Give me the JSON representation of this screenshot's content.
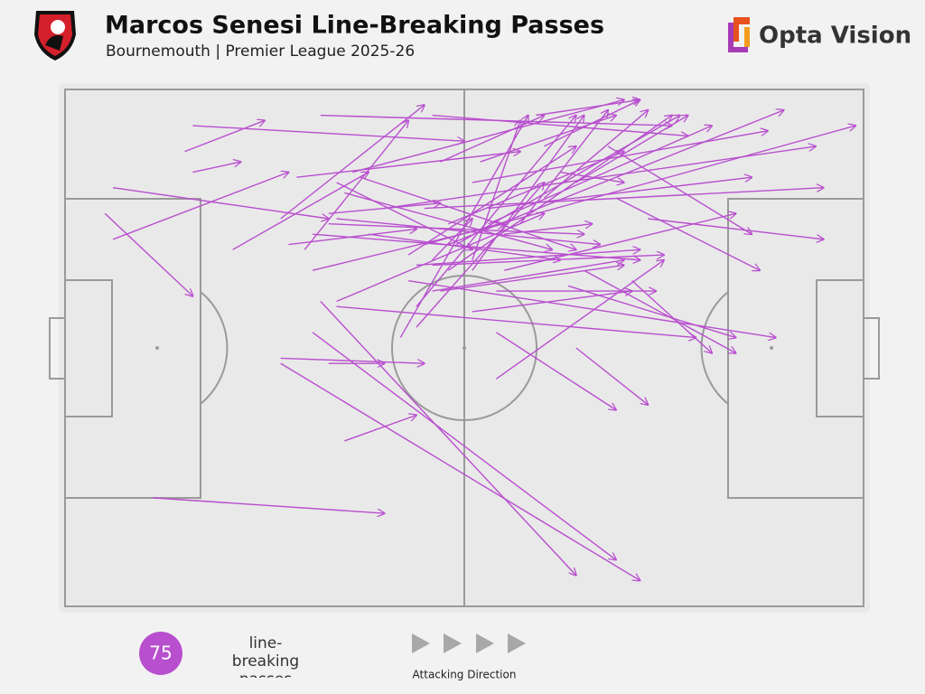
{
  "title": "Marcos Senesi Line-Breaking Passes",
  "subtitle": "Bournemouth | Premier League 2025-26",
  "brand": "Opta Vision",
  "pass_color": "#b84fce",
  "summary": {
    "count": 75,
    "label": "line-breaking passes"
  },
  "direction_label": "Attacking Direction",
  "passes": [
    [
      15,
      12,
      25,
      6
    ],
    [
      16,
      7,
      50,
      10
    ],
    [
      16,
      16,
      22,
      14
    ],
    [
      6,
      29,
      28,
      16
    ],
    [
      6,
      19,
      33,
      25
    ],
    [
      5,
      24,
      16,
      40
    ],
    [
      11,
      79,
      40,
      82
    ],
    [
      21,
      31,
      38,
      16
    ],
    [
      32,
      5,
      76,
      7
    ],
    [
      29,
      17,
      57,
      12
    ],
    [
      27,
      25,
      45,
      3
    ],
    [
      30,
      31,
      43,
      6
    ],
    [
      28,
      30,
      44,
      27
    ],
    [
      31,
      35,
      55,
      26
    ],
    [
      34,
      41,
      60,
      24
    ],
    [
      34,
      42,
      79,
      48
    ],
    [
      27,
      52,
      45,
      53
    ],
    [
      33,
      53,
      40,
      53
    ],
    [
      31,
      47,
      69,
      91
    ],
    [
      32,
      41,
      64,
      94
    ],
    [
      27,
      53,
      72,
      95
    ],
    [
      35,
      68,
      44,
      63
    ],
    [
      54,
      56,
      75,
      33
    ],
    [
      54,
      47,
      69,
      62
    ],
    [
      64,
      50,
      73,
      61
    ],
    [
      63,
      38,
      84,
      48
    ],
    [
      43,
      37,
      89,
      48
    ],
    [
      46,
      39,
      70,
      33
    ],
    [
      48,
      35,
      76,
      5
    ],
    [
      44,
      34,
      72,
      31
    ],
    [
      42,
      48,
      58,
      5
    ],
    [
      44,
      42,
      64,
      5
    ],
    [
      46,
      5,
      78,
      9
    ],
    [
      45,
      30,
      99,
      7
    ],
    [
      48,
      30,
      90,
      4
    ],
    [
      45,
      23,
      95,
      19
    ],
    [
      40,
      23,
      94,
      11
    ],
    [
      53,
      23,
      86,
      17
    ],
    [
      55,
      35,
      84,
      24
    ],
    [
      73,
      25,
      95,
      29
    ],
    [
      69,
      21,
      87,
      35
    ],
    [
      68,
      11,
      86,
      28
    ],
    [
      59,
      5,
      72,
      2
    ],
    [
      60,
      11,
      72,
      2
    ],
    [
      34,
      18,
      51,
      31
    ],
    [
      37,
      17,
      64,
      31
    ],
    [
      35,
      20,
      61,
      31
    ],
    [
      33,
      26,
      65,
      28
    ],
    [
      34,
      25,
      67,
      30
    ],
    [
      51,
      35,
      65,
      5
    ],
    [
      51,
      43,
      71,
      39
    ],
    [
      46,
      33,
      51,
      25
    ],
    [
      48,
      26,
      70,
      12
    ],
    [
      49,
      30,
      77,
      5
    ],
    [
      53,
      26,
      81,
      7
    ],
    [
      51,
      18,
      88,
      8
    ],
    [
      54,
      39,
      74,
      39
    ],
    [
      65,
      35,
      84,
      51
    ],
    [
      62,
      16,
      70,
      18
    ],
    [
      31,
      28,
      72,
      33
    ],
    [
      33,
      24,
      47,
      22
    ],
    [
      46,
      34,
      75,
      32
    ],
    [
      47,
      14,
      60,
      5
    ],
    [
      51,
      33,
      57,
      6
    ],
    [
      52,
      14,
      69,
      5
    ],
    [
      57,
      26,
      68,
      4
    ],
    [
      60,
      21,
      73,
      4
    ],
    [
      38,
      28,
      62,
      33
    ],
    [
      44,
      46,
      60,
      18
    ],
    [
      47,
      39,
      70,
      34
    ],
    [
      71,
      37,
      81,
      51
    ],
    [
      55,
      28,
      66,
      26
    ],
    [
      64,
      18,
      78,
      5
    ],
    [
      43,
      32,
      64,
      11
    ],
    [
      36,
      16,
      70,
      2
    ]
  ]
}
